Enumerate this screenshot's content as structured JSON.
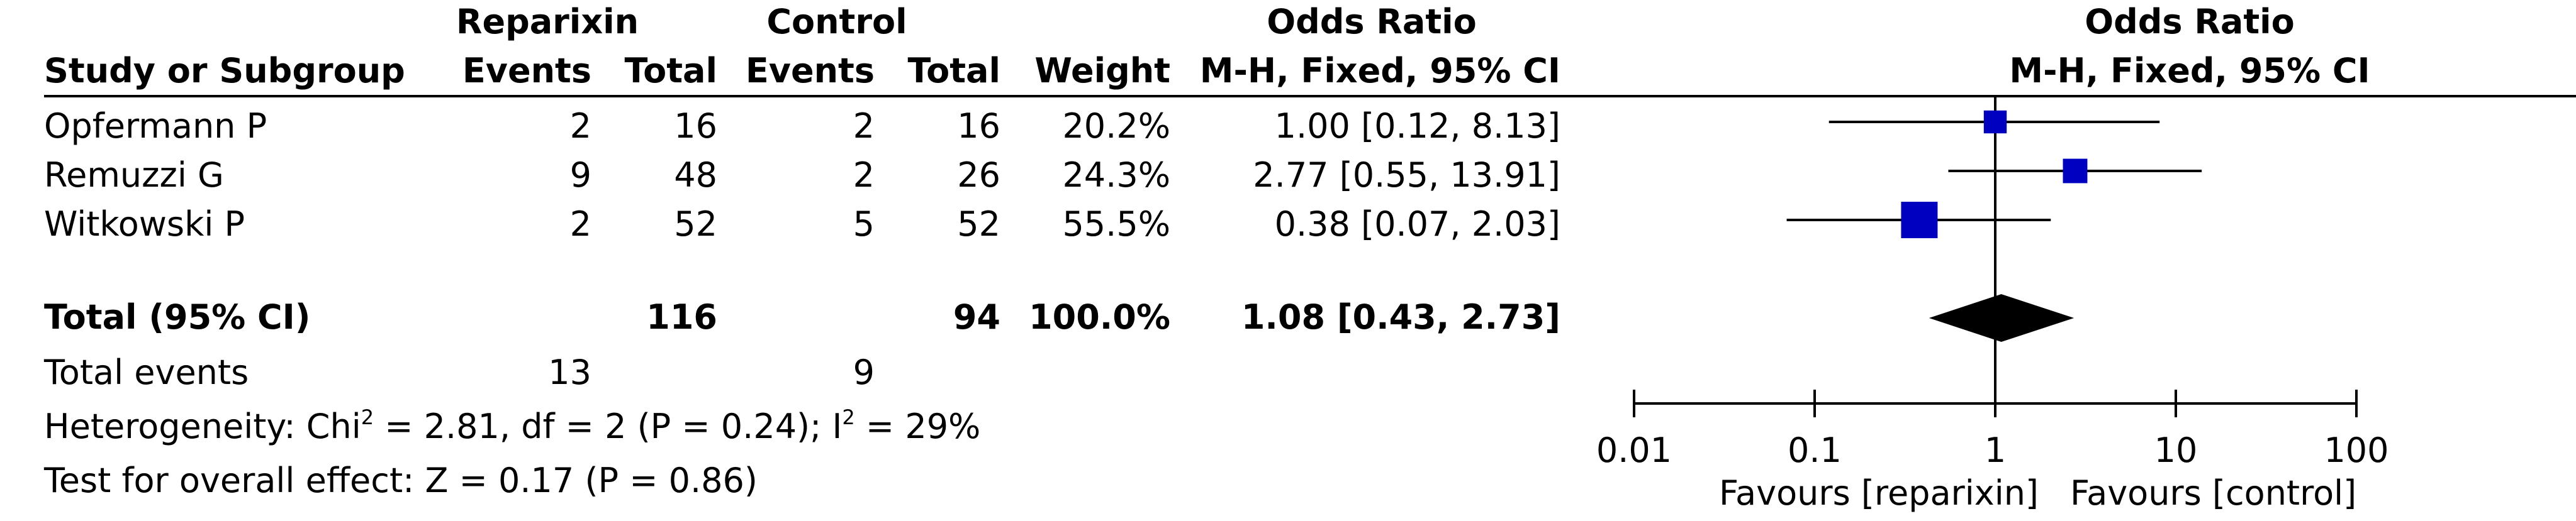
{
  "header": {
    "group1": "Reparixin",
    "group2": "Control",
    "odds_ratio": "Odds Ratio",
    "study_col": "Study or Subgroup",
    "events": "Events",
    "total": "Total",
    "weight": "Weight",
    "method": "M-H, Fixed, 95% CI",
    "plot_title": "Odds Ratio",
    "plot_method": "M-H, Fixed, 95% CI"
  },
  "studies": [
    {
      "name": "Opfermann P",
      "e1": "2",
      "n1": "16",
      "e2": "2",
      "n2": "16",
      "weight": "20.2%",
      "ci_text": "1.00 [0.12, 8.13]"
    },
    {
      "name": "Remuzzi G",
      "e1": "9",
      "n1": "48",
      "e2": "2",
      "n2": "26",
      "weight": "24.3%",
      "ci_text": "2.77 [0.55, 13.91]"
    },
    {
      "name": "Witkowski P",
      "e1": "2",
      "n1": "52",
      "e2": "5",
      "n2": "52",
      "weight": "55.5%",
      "ci_text": "0.38 [0.07, 2.03]"
    }
  ],
  "total": {
    "label": "Total (95% CI)",
    "n1": "116",
    "n2": "94",
    "weight": "100.0%",
    "ci_text": "1.08 [0.43, 2.73]"
  },
  "events": {
    "label": "Total events",
    "e1": "13",
    "e2": "9"
  },
  "heterogeneity": {
    "prefix": "Heterogeneity: Chi",
    "sup1": "2",
    "middle": " = 2.81, df = 2 (P = 0.24); I",
    "sup2": "2",
    "suffix": " = 29%"
  },
  "overall": {
    "label": "Test for overall effect: Z = 0.17 (P = 0.86)"
  },
  "axis": {
    "ticks": [
      "0.01",
      "0.1",
      "1",
      "10",
      "100"
    ],
    "favours_left": "Favours [reparixin]",
    "favours_right": "Favours [control]"
  },
  "colors": {
    "study_marker": "#0000c0",
    "pooled_marker": "#000000"
  },
  "chart_data": {
    "type": "forest",
    "title": "Odds Ratio",
    "subtitle": "M-H, Fixed, 95% CI",
    "x_scale": "log",
    "xlim": [
      0.01,
      100
    ],
    "x_ticks": [
      0.01,
      0.1,
      1,
      10,
      100
    ],
    "null_line": 1,
    "xlabel_left": "Favours [reparixin]",
    "xlabel_right": "Favours [control]",
    "studies": [
      {
        "name": "Opfermann P",
        "or": 1.0,
        "lower": 0.12,
        "upper": 8.13,
        "weight": 20.2
      },
      {
        "name": "Remuzzi G",
        "or": 2.77,
        "lower": 0.55,
        "upper": 13.91,
        "weight": 24.3
      },
      {
        "name": "Witkowski P",
        "or": 0.38,
        "lower": 0.07,
        "upper": 2.03,
        "weight": 55.5
      }
    ],
    "pooled": {
      "name": "Total (95% CI)",
      "or": 1.08,
      "lower": 0.43,
      "upper": 2.73,
      "weight": 100.0
    }
  }
}
